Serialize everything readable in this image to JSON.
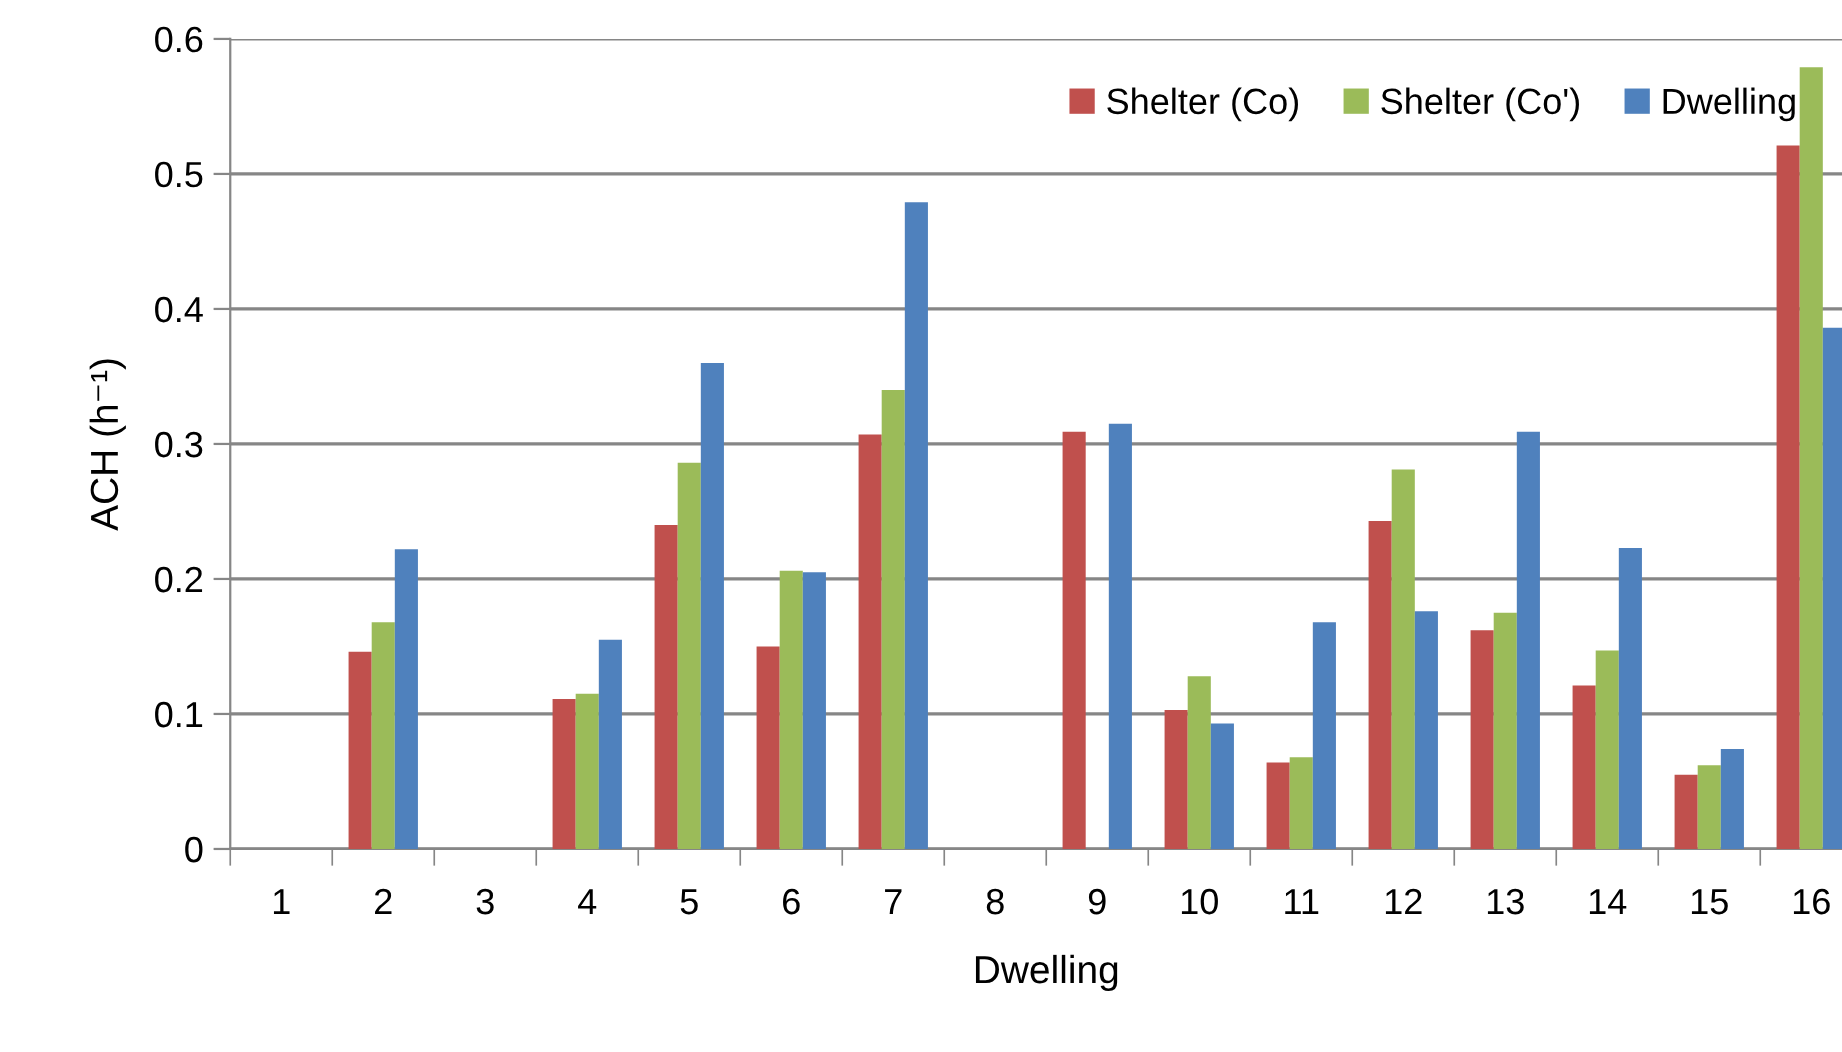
{
  "chart_data": {
    "type": "bar",
    "xlabel": "Dwelling",
    "ylabel": "ACH (h⁻¹)",
    "categories": [
      "1",
      "2",
      "3",
      "4",
      "5",
      "6",
      "7",
      "8",
      "9",
      "10",
      "11",
      "12",
      "13",
      "14",
      "15",
      "16"
    ],
    "series": [
      {
        "name": "Shelter (Co)",
        "color": "#c0504d",
        "values": [
          null,
          0.146,
          null,
          0.111,
          0.24,
          0.15,
          0.307,
          null,
          0.309,
          0.103,
          0.064,
          0.243,
          0.162,
          0.121,
          0.055,
          0.521
        ]
      },
      {
        "name": "Shelter (Co')",
        "color": "#9bbb59",
        "values": [
          null,
          0.168,
          null,
          0.115,
          0.286,
          0.206,
          0.34,
          null,
          null,
          0.128,
          0.068,
          0.281,
          0.175,
          0.147,
          0.062,
          0.579
        ]
      },
      {
        "name": "Dwelling",
        "color": "#4f81bd",
        "values": [
          null,
          0.222,
          null,
          0.155,
          0.36,
          0.205,
          0.479,
          null,
          0.315,
          0.093,
          0.168,
          0.176,
          0.309,
          0.223,
          0.074,
          0.386
        ]
      }
    ],
    "ylim": [
      0,
      0.6
    ],
    "yticks": [
      {
        "value": 0,
        "label": "0"
      },
      0.1,
      0.2,
      0.3,
      0.4,
      0.5,
      0.6
    ],
    "grid": "y",
    "legend": "top right"
  }
}
